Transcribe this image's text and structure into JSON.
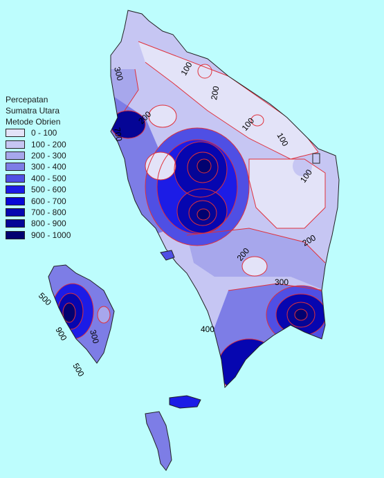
{
  "legend": {
    "title_lines": [
      "Percepatan",
      "Sumatra Utara",
      "Metode Obrien"
    ],
    "classes": [
      {
        "range": "0 - 100",
        "color": "#e3e3f8"
      },
      {
        "range": "100 - 200",
        "color": "#c6c6f3"
      },
      {
        "range": "200 - 300",
        "color": "#a7a7ec"
      },
      {
        "range": "300 - 400",
        "color": "#7d7de6"
      },
      {
        "range": "400 - 500",
        "color": "#4f4fe4"
      },
      {
        "range": "500 - 600",
        "color": "#1c1ce6"
      },
      {
        "range": "600 - 700",
        "color": "#0808d6"
      },
      {
        "range": "700 - 800",
        "color": "#0606b0"
      },
      {
        "range": "800 - 900",
        "color": "#050596"
      },
      {
        "range": "900 - 1000",
        "color": "#020270"
      }
    ]
  },
  "contour_labels": [
    "300",
    "100",
    "200",
    "200",
    "100",
    "100",
    "700",
    "100",
    "200",
    "200",
    "300",
    "400",
    "500",
    "900",
    "300",
    "500"
  ],
  "colors": {
    "sea": "#bdfdfd",
    "contour": "#e0303a",
    "outline": "#202020"
  }
}
